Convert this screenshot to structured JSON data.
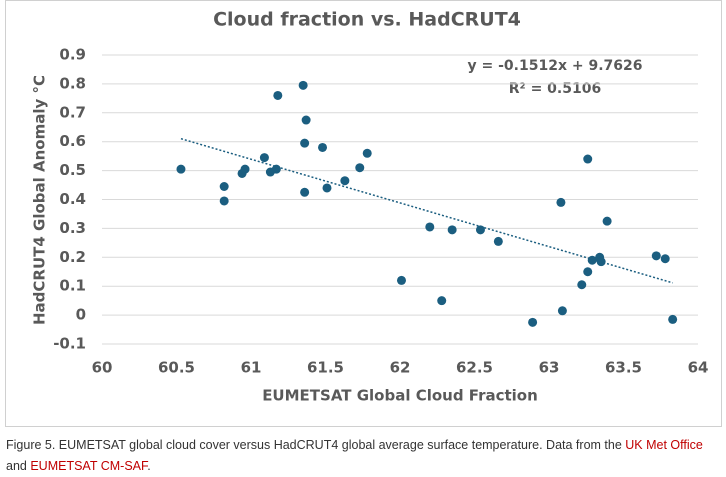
{
  "chart_data": {
    "type": "scatter",
    "title": "Cloud fraction vs. HadCRUT4",
    "x_label": "EUMETSAT Global Cloud Fraction",
    "y_label": "HadCRUT4 Global Anomaly °C",
    "equation": "y = -0.1512x + 9.7626",
    "r_squared": "R² = 0.5106",
    "trendline": {
      "slope": -0.1512,
      "intercept": 9.7626,
      "style": "dotted"
    },
    "color": "#1b5e80",
    "grid": true,
    "xlim": [
      60,
      64
    ],
    "xticks": [
      60,
      60.5,
      61,
      61.5,
      62,
      62.5,
      63,
      63.5,
      64
    ],
    "ylim": [
      -0.1,
      0.9
    ],
    "yticks": [
      -0.1,
      0,
      0.1,
      0.2,
      0.3,
      0.4,
      0.5,
      0.6,
      0.7,
      0.8,
      0.9
    ],
    "x": [
      60.53,
      60.82,
      60.82,
      60.94,
      60.96,
      61.09,
      61.13,
      61.17,
      61.18,
      61.35,
      61.36,
      61.37,
      61.36,
      61.48,
      61.51,
      61.63,
      61.73,
      61.78,
      62.01,
      62.2,
      62.28,
      62.35,
      62.54,
      62.66,
      62.89,
      63.08,
      63.09,
      63.22,
      63.26,
      63.26,
      63.29,
      63.34,
      63.35,
      63.39,
      63.72,
      63.78,
      63.83
    ],
    "values": [
      0.505,
      0.445,
      0.395,
      0.49,
      0.505,
      0.545,
      0.495,
      0.505,
      0.76,
      0.795,
      0.595,
      0.675,
      0.425,
      0.58,
      0.44,
      0.465,
      0.51,
      0.56,
      0.12,
      0.305,
      0.05,
      0.295,
      0.295,
      0.255,
      -0.025,
      0.39,
      0.015,
      0.105,
      0.54,
      0.15,
      0.19,
      0.2,
      0.185,
      0.325,
      0.205,
      0.195,
      -0.015
    ]
  },
  "caption": {
    "text": "Figure 5. EUMETSAT global cloud cover versus HadCRUT4 global average surface temperature. Data from the ",
    "link1": "UK Met Office",
    "middle": "and",
    "link2": "EUMETSAT CM-SAF",
    "end": "."
  }
}
